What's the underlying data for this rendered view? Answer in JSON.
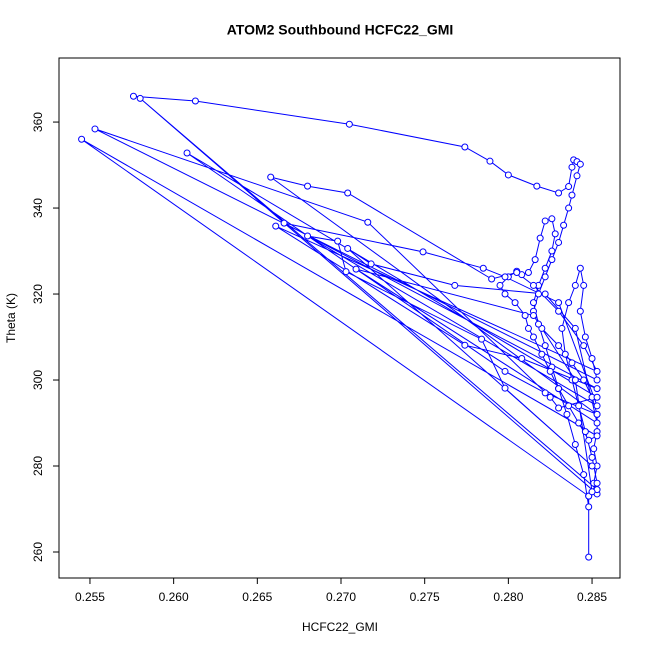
{
  "chart_data": {
    "type": "line",
    "title": "ATOM2 Southbound HCFC22_GMI",
    "x_label": "HCFC22_GMI",
    "y_label": "Theta (K)",
    "color": "#0000ff",
    "marker": "circle",
    "x": [
      0.2576,
      0.2613,
      0.2705,
      0.2774,
      0.2789,
      0.28,
      0.2817,
      0.283,
      0.2836,
      0.2838,
      0.2839,
      0.2841,
      0.2843,
      0.2841,
      0.2838,
      0.2836,
      0.2833,
      0.283,
      0.2826,
      0.2822,
      0.2818,
      0.2815,
      0.282,
      0.283,
      0.2838,
      0.2845,
      0.285,
      0.2853,
      0.2853,
      0.2851,
      0.2853,
      0.2851,
      0.2853,
      0.258,
      0.2853,
      0.2848,
      0.2848,
      0.2848,
      0.2845,
      0.284,
      0.2835,
      0.283,
      0.2826,
      0.2822,
      0.2818,
      0.2815,
      0.2818,
      0.2822,
      0.2826,
      0.2828,
      0.2826,
      0.2822,
      0.2819,
      0.2816,
      0.2812,
      0.2808,
      0.2805,
      0.28,
      0.2795,
      0.2798,
      0.2804,
      0.281,
      0.2812,
      0.2815,
      0.282,
      0.2825,
      0.283,
      0.2836,
      0.2842,
      0.2848,
      0.2853,
      0.2545,
      0.2848,
      0.2853,
      0.285,
      0.2846,
      0.2842,
      0.2838,
      0.2834,
      0.2832,
      0.2836,
      0.284,
      0.2843,
      0.2845,
      0.2843,
      0.2846,
      0.285,
      0.2853,
      0.2553,
      0.2716,
      0.2825,
      0.283,
      0.2853,
      0.2608,
      0.2798,
      0.2822,
      0.2853,
      0.2658,
      0.268,
      0.2704,
      0.279,
      0.2805,
      0.2815,
      0.283,
      0.2845,
      0.2853,
      0.2661,
      0.2774,
      0.2808,
      0.2853,
      0.2666,
      0.2749,
      0.2785,
      0.2798,
      0.283,
      0.2853,
      0.268,
      0.2698,
      0.2703,
      0.2784,
      0.2798,
      0.285,
      0.2704,
      0.2718,
      0.2768,
      0.2822,
      0.284,
      0.2853,
      0.2709,
      0.2815,
      0.284,
      0.285
    ],
    "values": [
      366.0,
      364.9,
      359.5,
      354.2,
      350.9,
      347.7,
      345.1,
      343.5,
      345.0,
      349.5,
      351.2,
      350.8,
      350.2,
      347.5,
      343.0,
      340.0,
      336.0,
      332.0,
      328.0,
      324.0,
      320.0,
      316.0,
      312.0,
      308.0,
      304.0,
      300.0,
      296.0,
      292.0,
      288.0,
      284.0,
      280.0,
      276.0,
      273.5,
      365.5,
      274.5,
      273.0,
      258.8,
      270.5,
      278,
      285,
      292,
      298,
      303,
      308,
      313,
      318,
      322,
      326,
      330,
      334,
      337.5,
      337,
      333,
      328,
      325,
      324.5,
      325.3,
      324,
      322,
      320,
      318,
      315,
      312,
      310,
      306,
      302,
      298,
      294,
      290,
      286,
      287,
      356.0,
      273,
      276,
      282,
      288,
      294,
      300,
      306,
      312,
      318,
      322,
      326,
      322,
      316,
      310,
      305,
      300,
      358.4,
      336.7,
      296,
      293.5,
      296,
      352.8,
      302,
      297,
      292,
      347.2,
      345.1,
      343.5,
      323.5,
      325,
      322,
      316,
      308,
      302,
      335.8,
      308.1,
      305,
      298,
      336.5,
      329.8,
      326.0,
      324,
      318,
      294,
      333.5,
      332.3,
      325.2,
      309.5,
      298.1,
      280,
      330.6,
      327.0,
      322,
      320,
      312,
      290,
      325.8,
      315,
      300,
      274
    ],
    "xlim": [
      0.25315,
      0.28667
    ],
    "ylim": [
      253.95,
      374.9
    ],
    "xticks": [
      0.255,
      {
        "value": 0.26,
        "label": "0.260"
      },
      0.265,
      {
        "value": 0.27,
        "label": "0.270"
      },
      0.275,
      {
        "value": 0.28,
        "label": "0.280"
      },
      0.285
    ],
    "yticks": [
      260,
      280,
      300,
      320,
      340,
      360
    ]
  }
}
